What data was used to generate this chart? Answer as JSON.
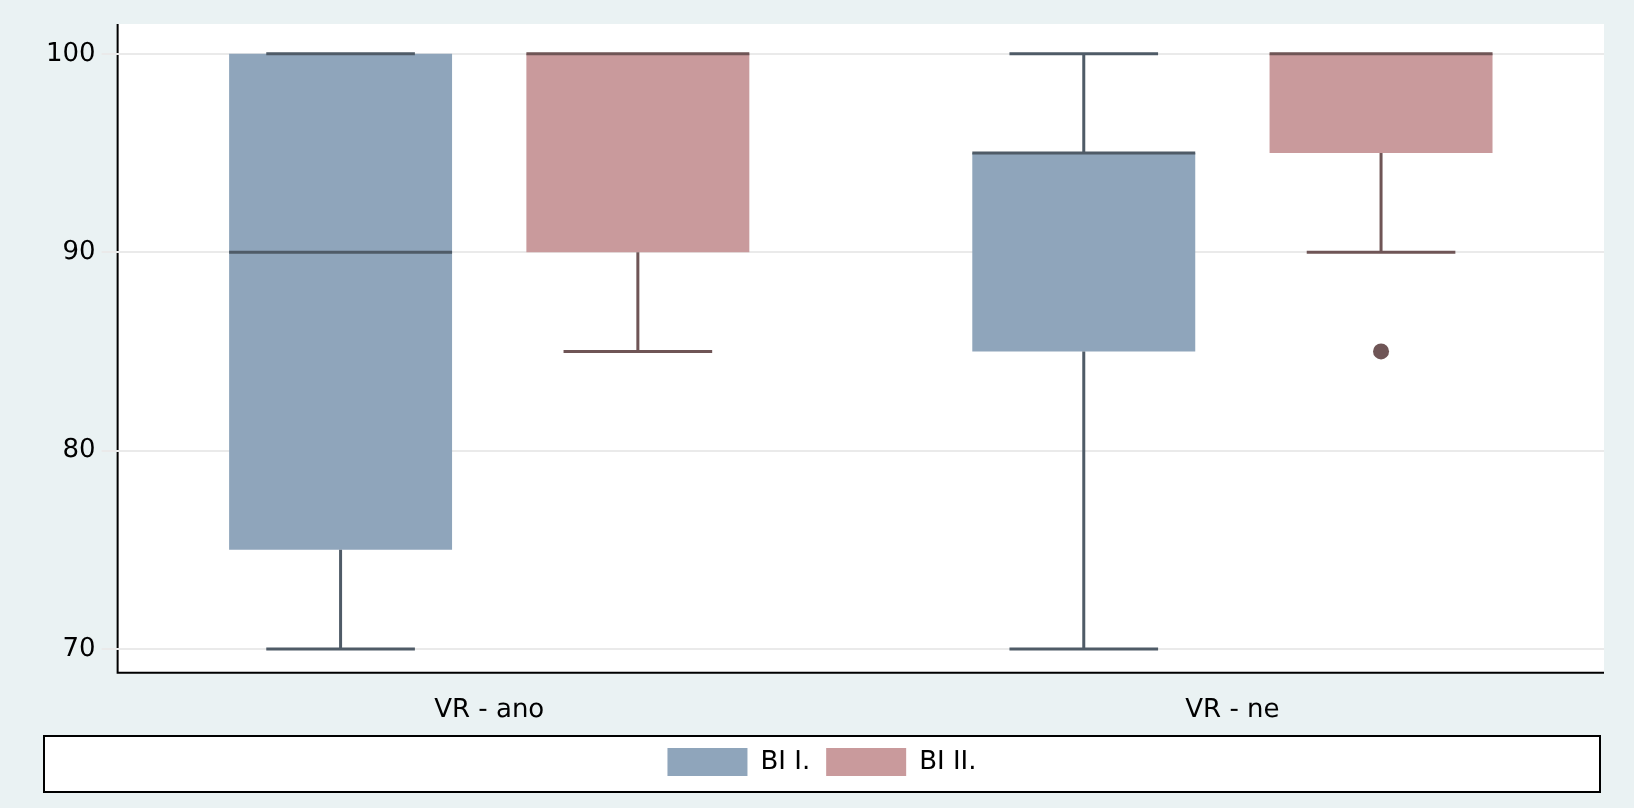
{
  "chart_data": {
    "type": "box",
    "categories": [
      "VR - ano",
      "VR - ne"
    ],
    "series": [
      {
        "name": "BI I.",
        "color": "#8fa5bb",
        "boxes": [
          {
            "low": 70,
            "q1": 75,
            "median": 90,
            "q3": 100,
            "high": 100
          },
          {
            "low": 70,
            "q1": 85,
            "median": 95,
            "q3": 95,
            "high": 100
          }
        ]
      },
      {
        "name": "BI II.",
        "color": "#c99a9c",
        "boxes": [
          {
            "low": 85,
            "q1": 90,
            "median": 100,
            "q3": 100,
            "high": 100
          },
          {
            "low": 90,
            "q1": 95,
            "median": 100,
            "q3": 100,
            "high": 100,
            "outliers": [
              85
            ]
          }
        ]
      }
    ],
    "ylim": [
      68.8,
      101.5
    ],
    "yticks": [
      70,
      80,
      90,
      100
    ],
    "grid": "y",
    "legend": "bottom"
  }
}
